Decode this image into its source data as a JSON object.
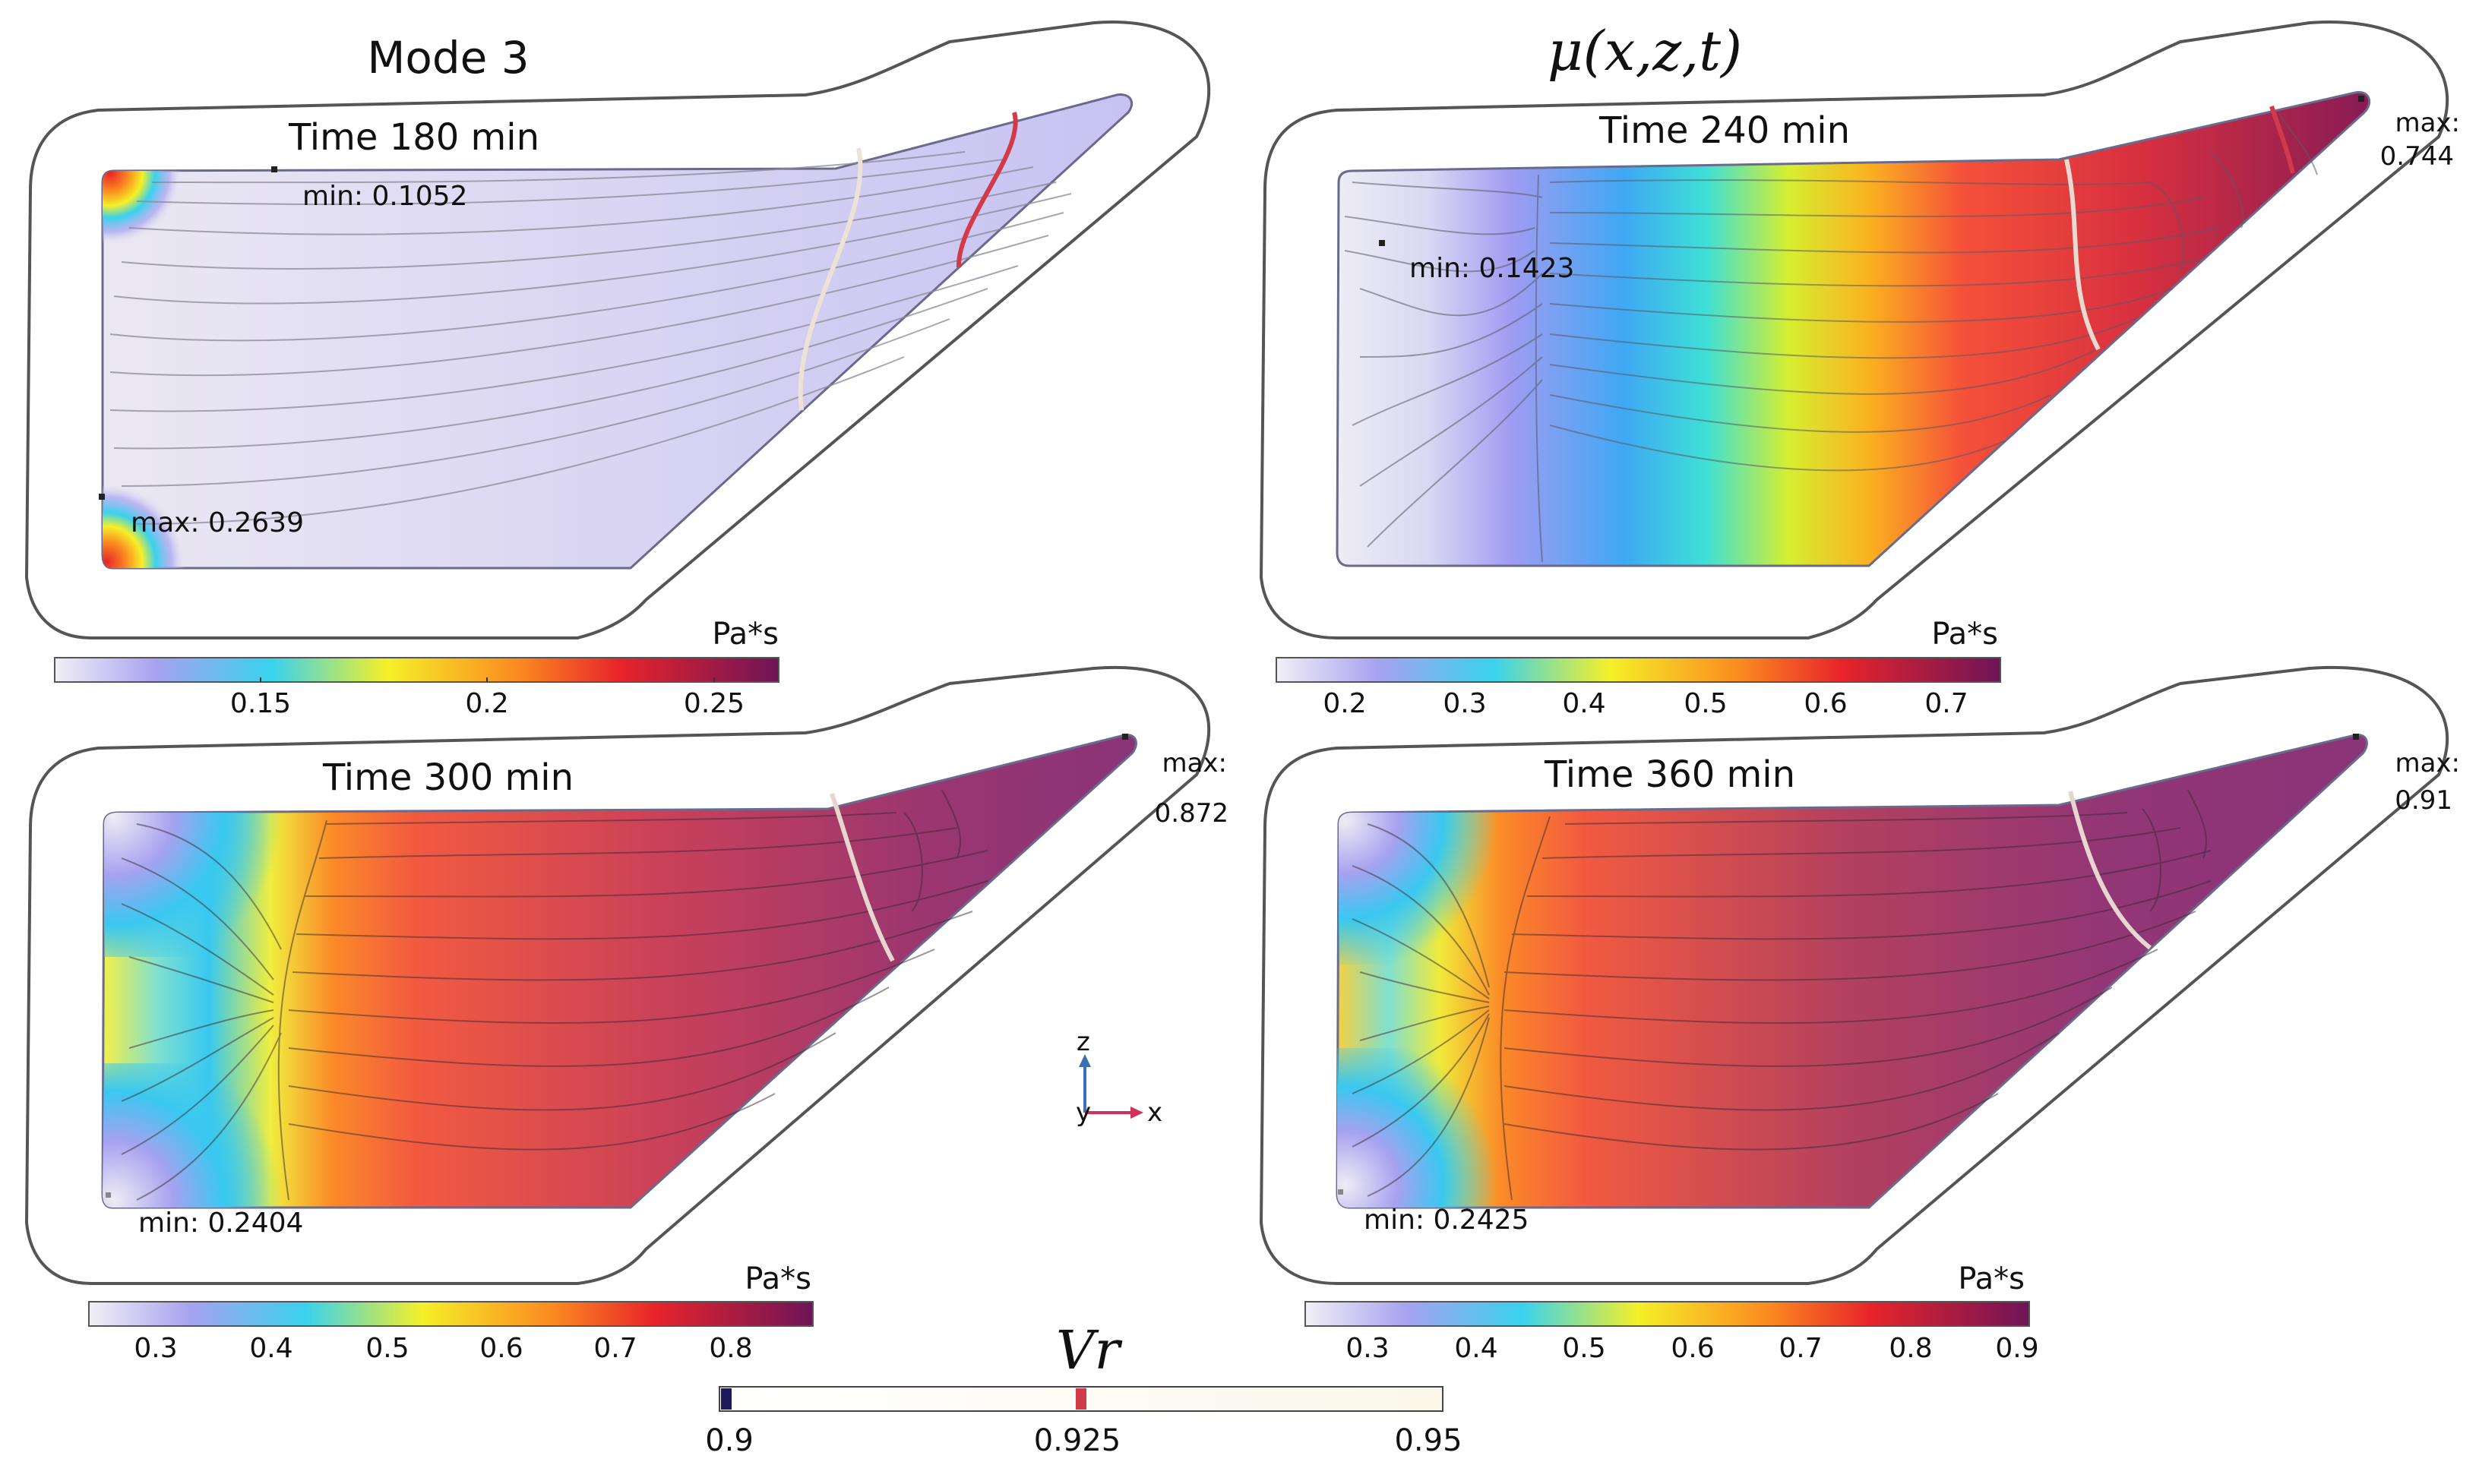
{
  "figure": {
    "mode_title": "Mode 3",
    "formula_title": "μ(x,z,t)",
    "panels": [
      {
        "time_label": "Time 180 min",
        "min_label": "min: 0.1052",
        "max_label": "max: 0.2639",
        "unit": "Pa*s",
        "colorbar_ticks": [
          "0.15",
          "0.2",
          "0.25"
        ]
      },
      {
        "time_label": "Time 240 min",
        "min_label": "min: 0.1423",
        "max_label_line1": "max:",
        "max_label_line2": "0.744",
        "unit": "Pa*s",
        "colorbar_ticks": [
          "0.2",
          "0.3",
          "0.4",
          "0.5",
          "0.6",
          "0.7"
        ]
      },
      {
        "time_label": "Time 300 min",
        "min_label": "min: 0.2404",
        "max_label_line1": "max:",
        "max_label_line2": "0.872",
        "unit": "Pa*s",
        "colorbar_ticks": [
          "0.3",
          "0.4",
          "0.5",
          "0.6",
          "0.7",
          "0.8"
        ]
      },
      {
        "time_label": "Time 360 min",
        "min_label": "min: 0.2425",
        "max_label_line1": "max:",
        "max_label_line2": "0.91",
        "unit": "Pa*s",
        "colorbar_ticks": [
          "0.3",
          "0.4",
          "0.5",
          "0.6",
          "0.7",
          "0.8",
          "0.9"
        ]
      }
    ],
    "axes_triad": {
      "z_label": "z",
      "y_label": "y",
      "x_label": "x"
    },
    "vr_legend": {
      "title": "Vr",
      "ticks": [
        "0.9",
        "0.925",
        "0.95"
      ]
    },
    "colors": {
      "outline": "#555555",
      "contour_low": "#e8dccf",
      "contour_mid": "#d0303c",
      "z_axis": "#3b6fb6",
      "x_axis": "#d0305a"
    }
  }
}
